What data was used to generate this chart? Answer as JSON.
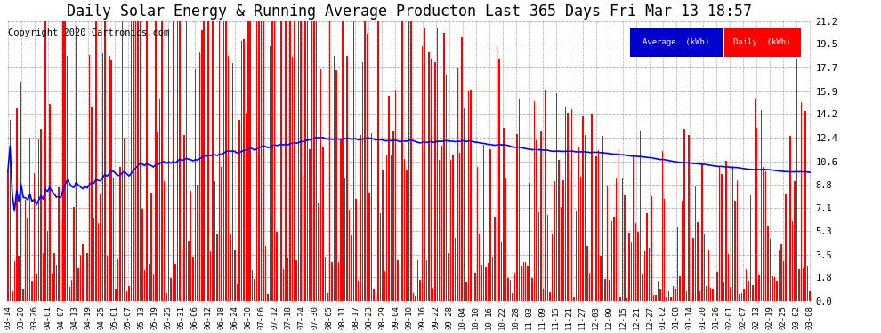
{
  "title": "Daily Solar Energy & Running Average Producton Last 365 Days Fri Mar 13 18:57",
  "copyright": "Copyright 2020 Cartronics.com",
  "yticks": [
    0.0,
    1.8,
    3.5,
    5.3,
    7.1,
    8.8,
    10.6,
    12.4,
    14.2,
    15.9,
    17.7,
    19.5,
    21.2
  ],
  "ymax": 21.2,
  "bar_color": "#FF0000",
  "avg_color": "#0000FF",
  "bg_color": "#FFFFFF",
  "grid_color": "#AAAAAA",
  "legend_avg_bg": "#0000CC",
  "legend_daily_bg": "#FF0000",
  "legend_avg_text": "Average  (kWh)",
  "legend_daily_text": "Daily  (kWh)",
  "title_fontsize": 12,
  "copyright_fontsize": 7.5,
  "xtick_labels": [
    "03-14",
    "03-20",
    "03-26",
    "04-01",
    "04-07",
    "04-13",
    "04-19",
    "04-25",
    "05-01",
    "05-07",
    "05-13",
    "05-19",
    "05-25",
    "05-31",
    "06-06",
    "06-12",
    "06-18",
    "06-24",
    "06-30",
    "07-06",
    "07-12",
    "07-18",
    "07-24",
    "07-30",
    "08-05",
    "08-11",
    "08-17",
    "08-23",
    "08-29",
    "09-04",
    "09-10",
    "09-16",
    "09-22",
    "09-28",
    "10-04",
    "10-10",
    "10-16",
    "10-22",
    "10-28",
    "11-03",
    "11-09",
    "11-15",
    "11-21",
    "11-27",
    "12-03",
    "12-09",
    "12-15",
    "12-21",
    "12-27",
    "01-02",
    "01-08",
    "01-14",
    "01-20",
    "01-26",
    "02-01",
    "02-07",
    "02-13",
    "02-19",
    "02-25",
    "03-02",
    "03-08"
  ]
}
